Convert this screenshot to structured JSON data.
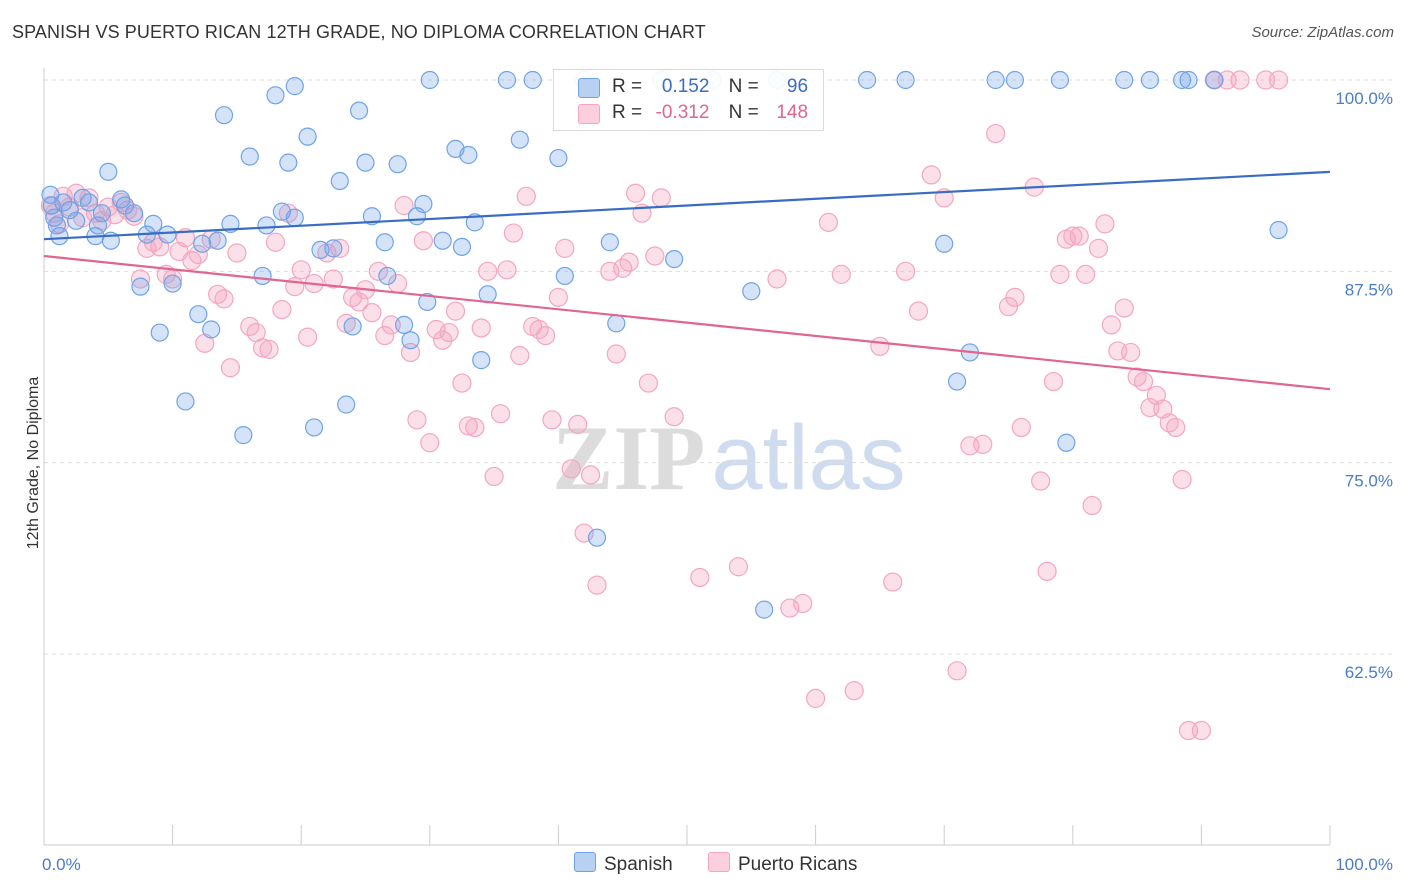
{
  "title": "SPANISH VS PUERTO RICAN 12TH GRADE, NO DIPLOMA CORRELATION CHART",
  "source": "Source: ZipAtlas.com",
  "watermark": {
    "zip": "ZIP",
    "atlas": "atlas"
  },
  "colors": {
    "spanish": "#6fa3e8",
    "spanish_line": "#3a6cc3",
    "puerto": "#f4a6c0",
    "puerto_line": "#e0668f"
  },
  "legend": {
    "spanish": {
      "r_label": "R =",
      "r_value": "0.152",
      "n_label": "N =",
      "n_value": "96"
    },
    "puerto": {
      "r_label": "R =",
      "r_value": "-0.312",
      "n_label": "N =",
      "n_value": "148"
    }
  },
  "bottom_legend": {
    "spanish": "Spanish",
    "puerto": "Puerto Ricans"
  },
  "chart_data": {
    "type": "scatter",
    "title": "SPANISH VS PUERTO RICAN 12TH GRADE, NO DIPLOMA CORRELATION CHART",
    "xlabel": "",
    "ylabel": "12th Grade, No Diploma",
    "xlim": [
      0,
      100
    ],
    "ylim": [
      50,
      100
    ],
    "x_tick_labels": [
      "0.0%",
      "100.0%"
    ],
    "y_ticks": [
      62.5,
      75.0,
      87.5,
      100.0
    ],
    "y_tick_labels": [
      "62.5%",
      "75.0%",
      "87.5%",
      "100.0%"
    ],
    "grid": "horizontal dashed",
    "legend_position": "top-center",
    "series": [
      {
        "name": "Spanish",
        "r": 0.152,
        "n": 96,
        "trend": {
          "x": [
            0,
            100
          ],
          "y": [
            89.6,
            94.0
          ]
        },
        "points": [
          [
            0.5,
            92.5
          ],
          [
            0.8,
            91.0
          ],
          [
            1.0,
            90.5
          ],
          [
            1.2,
            89.8
          ],
          [
            1.5,
            92.0
          ],
          [
            2.0,
            91.5
          ],
          [
            2.5,
            90.8
          ],
          [
            3.0,
            92.3
          ],
          [
            3.5,
            92.0
          ],
          [
            4.0,
            89.8
          ],
          [
            4.2,
            90.5
          ],
          [
            4.5,
            91.3
          ],
          [
            5.0,
            94.0
          ],
          [
            5.2,
            89.5
          ],
          [
            6.0,
            92.2
          ],
          [
            6.3,
            91.8
          ],
          [
            7.0,
            91.3
          ],
          [
            7.5,
            86.5
          ],
          [
            8.0,
            89.9
          ],
          [
            8.5,
            90.6
          ],
          [
            9.0,
            83.5
          ],
          [
            9.6,
            89.9
          ],
          [
            10.0,
            86.7
          ],
          [
            11.0,
            79.0
          ],
          [
            12.0,
            84.7
          ],
          [
            12.3,
            89.3
          ],
          [
            13.0,
            83.7
          ],
          [
            13.5,
            89.5
          ],
          [
            14.0,
            97.7
          ],
          [
            14.5,
            90.6
          ],
          [
            15.5,
            76.8
          ],
          [
            16.0,
            95.0
          ],
          [
            17.0,
            87.2
          ],
          [
            17.3,
            90.5
          ],
          [
            18.0,
            99.0
          ],
          [
            18.5,
            91.4
          ],
          [
            19.0,
            94.6
          ],
          [
            19.5,
            91.0
          ],
          [
            19.5,
            99.6
          ],
          [
            20.5,
            96.3
          ],
          [
            21.0,
            77.3
          ],
          [
            21.5,
            88.9
          ],
          [
            22.5,
            89.0
          ],
          [
            23.0,
            93.4
          ],
          [
            23.5,
            78.8
          ],
          [
            24.0,
            83.9
          ],
          [
            24.5,
            98.0
          ],
          [
            25.0,
            94.6
          ],
          [
            25.5,
            91.1
          ],
          [
            26.5,
            89.4
          ],
          [
            26.7,
            87.2
          ],
          [
            27.5,
            94.5
          ],
          [
            28.0,
            84.0
          ],
          [
            28.5,
            83.0
          ],
          [
            29.0,
            91.1
          ],
          [
            29.5,
            91.9
          ],
          [
            29.8,
            85.5
          ],
          [
            30.0,
            100.0
          ],
          [
            31.0,
            89.5
          ],
          [
            32.0,
            95.5
          ],
          [
            32.5,
            89.1
          ],
          [
            33.0,
            95.1
          ],
          [
            33.5,
            90.7
          ],
          [
            34.0,
            81.7
          ],
          [
            34.5,
            86.0
          ],
          [
            36.0,
            100.0
          ],
          [
            37.0,
            96.1
          ],
          [
            38.0,
            100.0
          ],
          [
            40.0,
            94.9
          ],
          [
            40.5,
            87.2
          ],
          [
            42.0,
            100.0
          ],
          [
            43.0,
            70.1
          ],
          [
            44.0,
            89.4
          ],
          [
            44.5,
            84.1
          ],
          [
            48.0,
            100.0
          ],
          [
            49.0,
            88.3
          ],
          [
            52.0,
            100.0
          ],
          [
            55.0,
            86.2
          ],
          [
            56.0,
            65.4
          ],
          [
            57.0,
            100.0
          ],
          [
            64.0,
            100.0
          ],
          [
            67.0,
            100.0
          ],
          [
            70.0,
            89.3
          ],
          [
            71.0,
            80.3
          ],
          [
            72.0,
            82.2
          ],
          [
            74.0,
            100.0
          ],
          [
            75.5,
            100.0
          ],
          [
            79.0,
            100.0
          ],
          [
            79.5,
            76.3
          ],
          [
            84.0,
            100.0
          ],
          [
            86.0,
            100.0
          ],
          [
            88.5,
            100.0
          ],
          [
            89.0,
            100.0
          ],
          [
            91.0,
            100.0
          ],
          [
            96.0,
            90.2
          ],
          [
            0.6,
            91.8
          ]
        ]
      },
      {
        "name": "Puerto Ricans",
        "r": -0.312,
        "n": 148,
        "trend": {
          "x": [
            0,
            100
          ],
          "y": [
            88.5,
            79.8
          ]
        },
        "points": [
          [
            0.5,
            91.8
          ],
          [
            0.8,
            91.3
          ],
          [
            1.2,
            90.6
          ],
          [
            1.5,
            92.4
          ],
          [
            2.0,
            91.7
          ],
          [
            2.5,
            92.6
          ],
          [
            3.0,
            91.0
          ],
          [
            3.5,
            92.3
          ],
          [
            4.0,
            91.3
          ],
          [
            4.5,
            90.8
          ],
          [
            5.0,
            91.7
          ],
          [
            5.5,
            91.2
          ],
          [
            6.0,
            92.0
          ],
          [
            6.5,
            91.5
          ],
          [
            7.0,
            91.1
          ],
          [
            7.5,
            87.0
          ],
          [
            8.0,
            89.0
          ],
          [
            8.5,
            89.4
          ],
          [
            9.0,
            89.1
          ],
          [
            9.5,
            87.3
          ],
          [
            10.0,
            87.0
          ],
          [
            10.5,
            88.8
          ],
          [
            11.0,
            89.7
          ],
          [
            11.5,
            88.2
          ],
          [
            12.0,
            88.6
          ],
          [
            12.5,
            82.8
          ],
          [
            13.0,
            89.6
          ],
          [
            13.5,
            86.0
          ],
          [
            14.0,
            85.7
          ],
          [
            14.5,
            81.2
          ],
          [
            15.0,
            88.7
          ],
          [
            16.0,
            83.9
          ],
          [
            16.5,
            83.5
          ],
          [
            17.0,
            82.5
          ],
          [
            17.5,
            82.4
          ],
          [
            18.0,
            89.4
          ],
          [
            18.5,
            85.0
          ],
          [
            19.0,
            91.3
          ],
          [
            19.5,
            86.5
          ],
          [
            20.0,
            87.6
          ],
          [
            20.5,
            83.2
          ],
          [
            21.0,
            86.7
          ],
          [
            22.0,
            88.7
          ],
          [
            22.5,
            87.0
          ],
          [
            23.0,
            89.0
          ],
          [
            23.5,
            84.1
          ],
          [
            24.0,
            85.8
          ],
          [
            24.5,
            85.5
          ],
          [
            25.0,
            86.3
          ],
          [
            25.5,
            84.8
          ],
          [
            26.0,
            87.5
          ],
          [
            26.5,
            83.3
          ],
          [
            27.0,
            84.0
          ],
          [
            27.5,
            86.7
          ],
          [
            28.0,
            91.8
          ],
          [
            28.5,
            82.2
          ],
          [
            29.0,
            77.8
          ],
          [
            29.5,
            89.5
          ],
          [
            30.0,
            76.3
          ],
          [
            30.5,
            83.7
          ],
          [
            31.0,
            83.0
          ],
          [
            31.5,
            83.5
          ],
          [
            32.0,
            84.9
          ],
          [
            32.5,
            80.2
          ],
          [
            33.0,
            77.4
          ],
          [
            33.5,
            77.3
          ],
          [
            34.0,
            83.8
          ],
          [
            34.5,
            87.5
          ],
          [
            35.0,
            74.1
          ],
          [
            35.5,
            78.2
          ],
          [
            36.0,
            87.6
          ],
          [
            36.5,
            90.0
          ],
          [
            37.0,
            82.0
          ],
          [
            37.5,
            92.4
          ],
          [
            38.0,
            83.9
          ],
          [
            38.5,
            83.7
          ],
          [
            39.0,
            83.3
          ],
          [
            39.5,
            77.8
          ],
          [
            40.0,
            85.8
          ],
          [
            40.5,
            89.0
          ],
          [
            41.0,
            74.6
          ],
          [
            41.5,
            77.5
          ],
          [
            42.0,
            70.4
          ],
          [
            42.5,
            74.2
          ],
          [
            43.0,
            67.0
          ],
          [
            44.0,
            87.5
          ],
          [
            44.5,
            82.1
          ],
          [
            45.0,
            87.7
          ],
          [
            45.5,
            88.1
          ],
          [
            46.0,
            92.6
          ],
          [
            46.5,
            91.3
          ],
          [
            47.0,
            80.2
          ],
          [
            47.5,
            88.5
          ],
          [
            48.0,
            92.3
          ],
          [
            49.0,
            78.0
          ],
          [
            51.0,
            67.5
          ],
          [
            54.0,
            68.2
          ],
          [
            57.0,
            87.0
          ],
          [
            58.0,
            65.5
          ],
          [
            59.0,
            65.8
          ],
          [
            60.0,
            59.6
          ],
          [
            61.0,
            90.7
          ],
          [
            62.0,
            87.3
          ],
          [
            63.0,
            60.1
          ],
          [
            65.0,
            82.6
          ],
          [
            66.0,
            67.2
          ],
          [
            67.0,
            87.5
          ],
          [
            68.0,
            84.9
          ],
          [
            69.0,
            93.8
          ],
          [
            70.0,
            92.3
          ],
          [
            71.0,
            61.4
          ],
          [
            72.0,
            76.1
          ],
          [
            73.0,
            76.2
          ],
          [
            74.0,
            96.5
          ],
          [
            75.0,
            85.2
          ],
          [
            75.5,
            85.8
          ],
          [
            76.0,
            77.3
          ],
          [
            77.0,
            93.0
          ],
          [
            77.5,
            73.8
          ],
          [
            78.0,
            67.9
          ],
          [
            78.5,
            80.3
          ],
          [
            79.0,
            87.3
          ],
          [
            79.5,
            89.6
          ],
          [
            80.0,
            89.8
          ],
          [
            80.5,
            89.8
          ],
          [
            81.0,
            87.3
          ],
          [
            81.5,
            72.2
          ],
          [
            82.0,
            89.0
          ],
          [
            82.5,
            90.6
          ],
          [
            83.0,
            84.0
          ],
          [
            83.5,
            82.3
          ],
          [
            84.0,
            85.1
          ],
          [
            84.5,
            82.2
          ],
          [
            85.0,
            80.6
          ],
          [
            85.5,
            80.3
          ],
          [
            86.0,
            78.6
          ],
          [
            86.5,
            79.4
          ],
          [
            87.0,
            78.5
          ],
          [
            87.5,
            77.6
          ],
          [
            88.0,
            77.3
          ],
          [
            88.5,
            73.9
          ],
          [
            89.0,
            57.5
          ],
          [
            90.0,
            57.5
          ],
          [
            91.0,
            100.0
          ],
          [
            92.0,
            100.0
          ],
          [
            93.0,
            100.0
          ],
          [
            95.0,
            100.0
          ],
          [
            96.0,
            100.0
          ]
        ]
      }
    ]
  }
}
